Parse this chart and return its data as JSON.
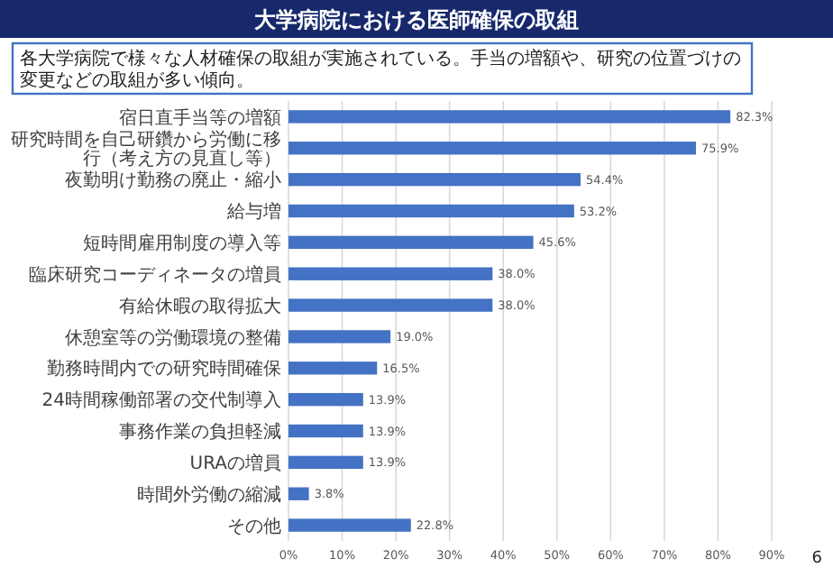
{
  "chart_data": {
    "type": "bar",
    "orientation": "horizontal",
    "title": "大学病院における医師確保の取組",
    "subtitle": "各大学病院で様々な人材確保の取組が実施されている。手当の増額や、研究の位置づけの変更などの取組が多い傾向。",
    "categories": [
      "宿日直手当等の増額",
      "研究時間を自己研鑽から労働に移行（考え方の見直し等）",
      "夜勤明け勤務の廃止・縮小",
      "給与増",
      "短時間雇用制度の導入等",
      "臨床研究コーディネータの増員",
      "有給休暇の取得拡大",
      "休憩室等の労働環境の整備",
      "勤務時間内での研究時間確保",
      "24時間稼働部署の交代制導入",
      "事務作業の負担軽減",
      "URAの増員",
      "時間外労働の縮減",
      "その他"
    ],
    "values": [
      82.3,
      75.9,
      54.4,
      53.2,
      45.6,
      38.0,
      38.0,
      19.0,
      16.5,
      13.9,
      13.9,
      13.9,
      3.8,
      22.8
    ],
    "value_labels": [
      "82.3%",
      "75.9%",
      "54.4%",
      "53.2%",
      "45.6%",
      "38.0%",
      "38.0%",
      "19.0%",
      "16.5%",
      "13.9%",
      "13.9%",
      "13.9%",
      "3.8%",
      "22.8%"
    ],
    "color": "#4472c4",
    "xlim": [
      0,
      90
    ],
    "xticks": [
      {
        "value": 0,
        "label": "0%"
      },
      {
        "value": 10,
        "label": "10%"
      },
      {
        "value": 20,
        "label": "20%"
      },
      {
        "value": 30,
        "label": "30%"
      },
      {
        "value": 40,
        "label": "40%"
      },
      {
        "value": 50,
        "label": "50%"
      },
      {
        "value": 60,
        "label": "60%"
      },
      {
        "value": 70,
        "label": "70%"
      },
      {
        "value": 80,
        "label": "80%"
      },
      {
        "value": 90,
        "label": "90%"
      }
    ],
    "grid": "x",
    "annotations": [
      "6"
    ]
  }
}
